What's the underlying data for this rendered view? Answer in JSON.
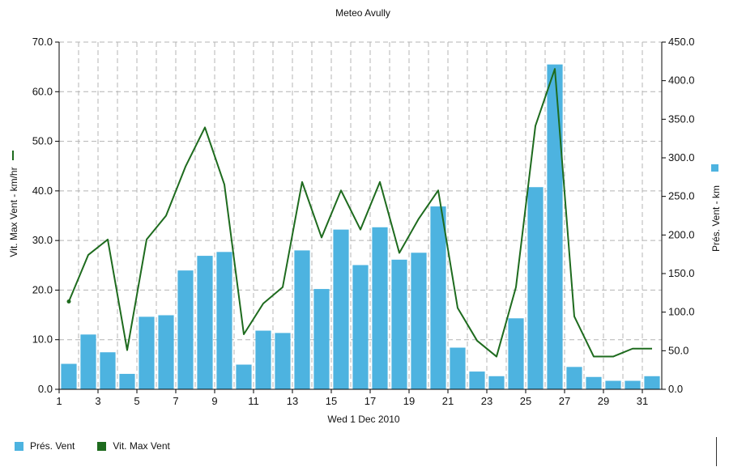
{
  "chart_data": {
    "type": "bar+line",
    "title": "Meteo  Avully",
    "xlabel": "Wed 1 Dec 2010",
    "x_ticks": [
      "1",
      "3",
      "5",
      "7",
      "9",
      "11",
      "13",
      "15",
      "17",
      "19",
      "21",
      "23",
      "25",
      "27",
      "29",
      "31"
    ],
    "x_range": [
      1,
      32
    ],
    "y_left": {
      "label": "Vit. Max Vent - km/hr",
      "range": [
        0,
        70
      ],
      "ticks": [
        "0.0",
        "10.0",
        "20.0",
        "30.0",
        "40.0",
        "50.0",
        "60.0",
        "70.0"
      ]
    },
    "y_right": {
      "label": "Prés. Vent - km",
      "range": [
        0,
        450
      ],
      "ticks": [
        "0.0",
        "50.0",
        "100.0",
        "150.0",
        "200.0",
        "250.0",
        "300.0",
        "350.0",
        "400.0",
        "450.0"
      ]
    },
    "grid": true,
    "series": [
      {
        "name": "Prés. Vent",
        "type": "bar",
        "axis": "right",
        "color": "#4db3e0",
        "x": [
          1,
          2,
          3,
          4,
          5,
          6,
          7,
          8,
          9,
          10,
          11,
          12,
          13,
          14,
          15,
          16,
          17,
          18,
          19,
          20,
          21,
          22,
          23,
          24,
          25,
          26,
          27,
          28,
          29,
          30,
          31
        ],
        "values": [
          33,
          71,
          48,
          20,
          94,
          96,
          154,
          173,
          178,
          32,
          76,
          73,
          180,
          130,
          207,
          161,
          210,
          168,
          177,
          237,
          54,
          23,
          17,
          92,
          262,
          421,
          29,
          16,
          11,
          11,
          17
        ]
      },
      {
        "name": "Vit. Max Vent",
        "type": "line",
        "axis": "left",
        "color": "#1e6b1e",
        "x": [
          1.5,
          2.5,
          3.5,
          4.5,
          5.5,
          6.5,
          7.5,
          8.5,
          9.5,
          10.5,
          11.5,
          12.5,
          13.5,
          14.5,
          15.5,
          16.5,
          17.5,
          18.5,
          19.5,
          20.5,
          21.5,
          22.5,
          23.5,
          24.5,
          25.5,
          26.5,
          27.5,
          28.5,
          29.5,
          30.5,
          31.5
        ],
        "values": [
          17.7,
          27.1,
          30.2,
          7.9,
          30.2,
          35.0,
          44.9,
          52.8,
          41.3,
          11.1,
          17.3,
          20.6,
          41.8,
          30.6,
          40.1,
          32.2,
          41.8,
          27.5,
          34.4,
          40.1,
          16.4,
          9.8,
          6.6,
          20.6,
          53.1,
          64.6,
          14.7,
          6.6,
          6.6,
          8.2,
          8.2
        ]
      }
    ],
    "legend": {
      "placement": "bottom-left",
      "items": [
        {
          "label": "Prés. Vent",
          "color": "#4db3e0"
        },
        {
          "label": "Vit. Max Vent",
          "color": "#1e6b1e"
        }
      ]
    }
  }
}
